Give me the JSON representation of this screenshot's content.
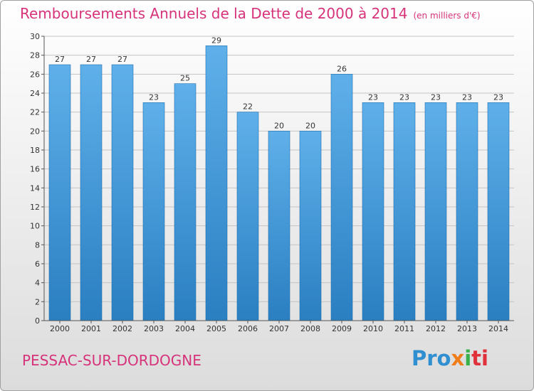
{
  "header": {
    "title": "Remboursements Annuels de la Dette de 2000 à 2014",
    "unit": "(en milliers d'€)"
  },
  "footer": {
    "commune": "PESSAC-SUR-DORDOGNE",
    "logo_parts": [
      "Pro",
      "x",
      "i",
      "ti"
    ]
  },
  "colors": {
    "title": "#d6337a",
    "bar_top": "#5fb0ea",
    "bar_bottom": "#2a7fc1"
  },
  "chart_data": {
    "type": "bar",
    "title": "Remboursements Annuels de la Dette de 2000 à 2014",
    "subtitle": "(en milliers d'€)",
    "categories": [
      "2000",
      "2001",
      "2002",
      "2003",
      "2004",
      "2005",
      "2006",
      "2007",
      "2008",
      "2009",
      "2010",
      "2011",
      "2012",
      "2013",
      "2014"
    ],
    "values": [
      27,
      27,
      27,
      23,
      25,
      29,
      22,
      20,
      20,
      26,
      23,
      23,
      23,
      23,
      23
    ],
    "ylim": [
      0,
      30
    ],
    "yticks": [
      0,
      2,
      4,
      6,
      8,
      10,
      12,
      14,
      16,
      18,
      20,
      22,
      24,
      26,
      28,
      30
    ],
    "grid": true,
    "legend": "none"
  }
}
